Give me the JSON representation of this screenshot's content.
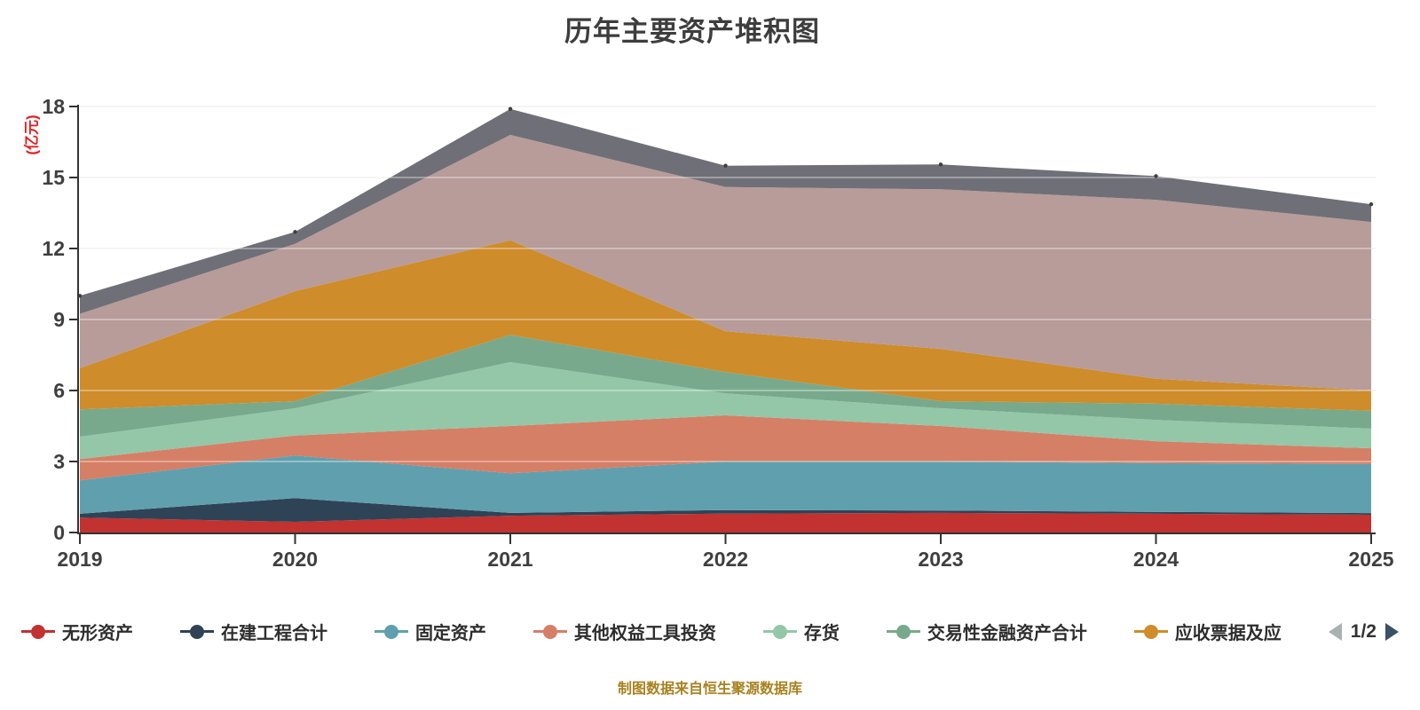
{
  "source_note": "制图数据来自恒生聚源数据库",
  "legend": {
    "visible_series": 7,
    "pager": {
      "label": "1/2",
      "prev_icon": "left-arrow",
      "next_icon": "right-arrow"
    }
  },
  "chart_data": {
    "type": "area",
    "stacked": true,
    "title": "历年主要资产堆积图",
    "y_unit": "(亿元)",
    "x": [
      "2019",
      "2020",
      "2021",
      "2022",
      "2023",
      "2024",
      "2025"
    ],
    "ylim": [
      0,
      18
    ],
    "yticks": [
      0,
      3,
      6,
      9,
      12,
      15,
      18
    ],
    "grid": true,
    "legend_position": "bottom",
    "series": [
      {
        "name": "无形资产",
        "color": "#c13231",
        "values": [
          0.63,
          0.45,
          0.71,
          0.8,
          0.83,
          0.79,
          0.75
        ]
      },
      {
        "name": "在建工程合计",
        "color": "#2f4356",
        "values": [
          0.16,
          1.0,
          0.12,
          0.15,
          0.1,
          0.08,
          0.07
        ]
      },
      {
        "name": "固定资产",
        "color": "#60a0ae",
        "values": [
          1.41,
          1.8,
          1.67,
          2.05,
          2.07,
          2.06,
          2.07
        ]
      },
      {
        "name": "其他权益工具投资",
        "color": "#d57f66",
        "values": [
          0.9,
          0.85,
          2.0,
          1.95,
          1.5,
          0.93,
          0.67
        ]
      },
      {
        "name": "存货",
        "color": "#93c7a8",
        "values": [
          0.95,
          1.15,
          2.7,
          0.93,
          0.75,
          0.9,
          0.83
        ]
      },
      {
        "name": "交易性金融资产合计",
        "color": "#78a98c",
        "values": [
          1.15,
          0.3,
          1.15,
          0.9,
          0.3,
          0.68,
          0.75
        ]
      },
      {
        "name": "应收票据及应",
        "color": "#ce8c2a",
        "values": [
          1.74,
          4.65,
          4.0,
          1.72,
          2.21,
          1.06,
          0.86
        ]
      },
      {
        "name": "",
        "color": "#b79c99",
        "values": [
          2.3,
          2.0,
          4.45,
          6.1,
          6.74,
          7.56,
          7.12
        ]
      },
      {
        "name": "",
        "color": "#6f6f77",
        "values": [
          0.76,
          0.5,
          1.1,
          0.9,
          1.05,
          1.0,
          0.75
        ]
      }
    ],
    "totals": [
      10.0,
      12.7,
      17.9,
      15.5,
      15.55,
      15.05,
      13.87
    ],
    "colors": {
      "axis_line": "#333333",
      "axis_label": "#3f3f3f",
      "gridline": "#d9d9d9",
      "title": "#3d3d3d",
      "y_unit_label": "#e02222",
      "source_note": "#a8811f",
      "pager_prev": "#abb1b1",
      "pager_next": "#3a5166"
    }
  }
}
